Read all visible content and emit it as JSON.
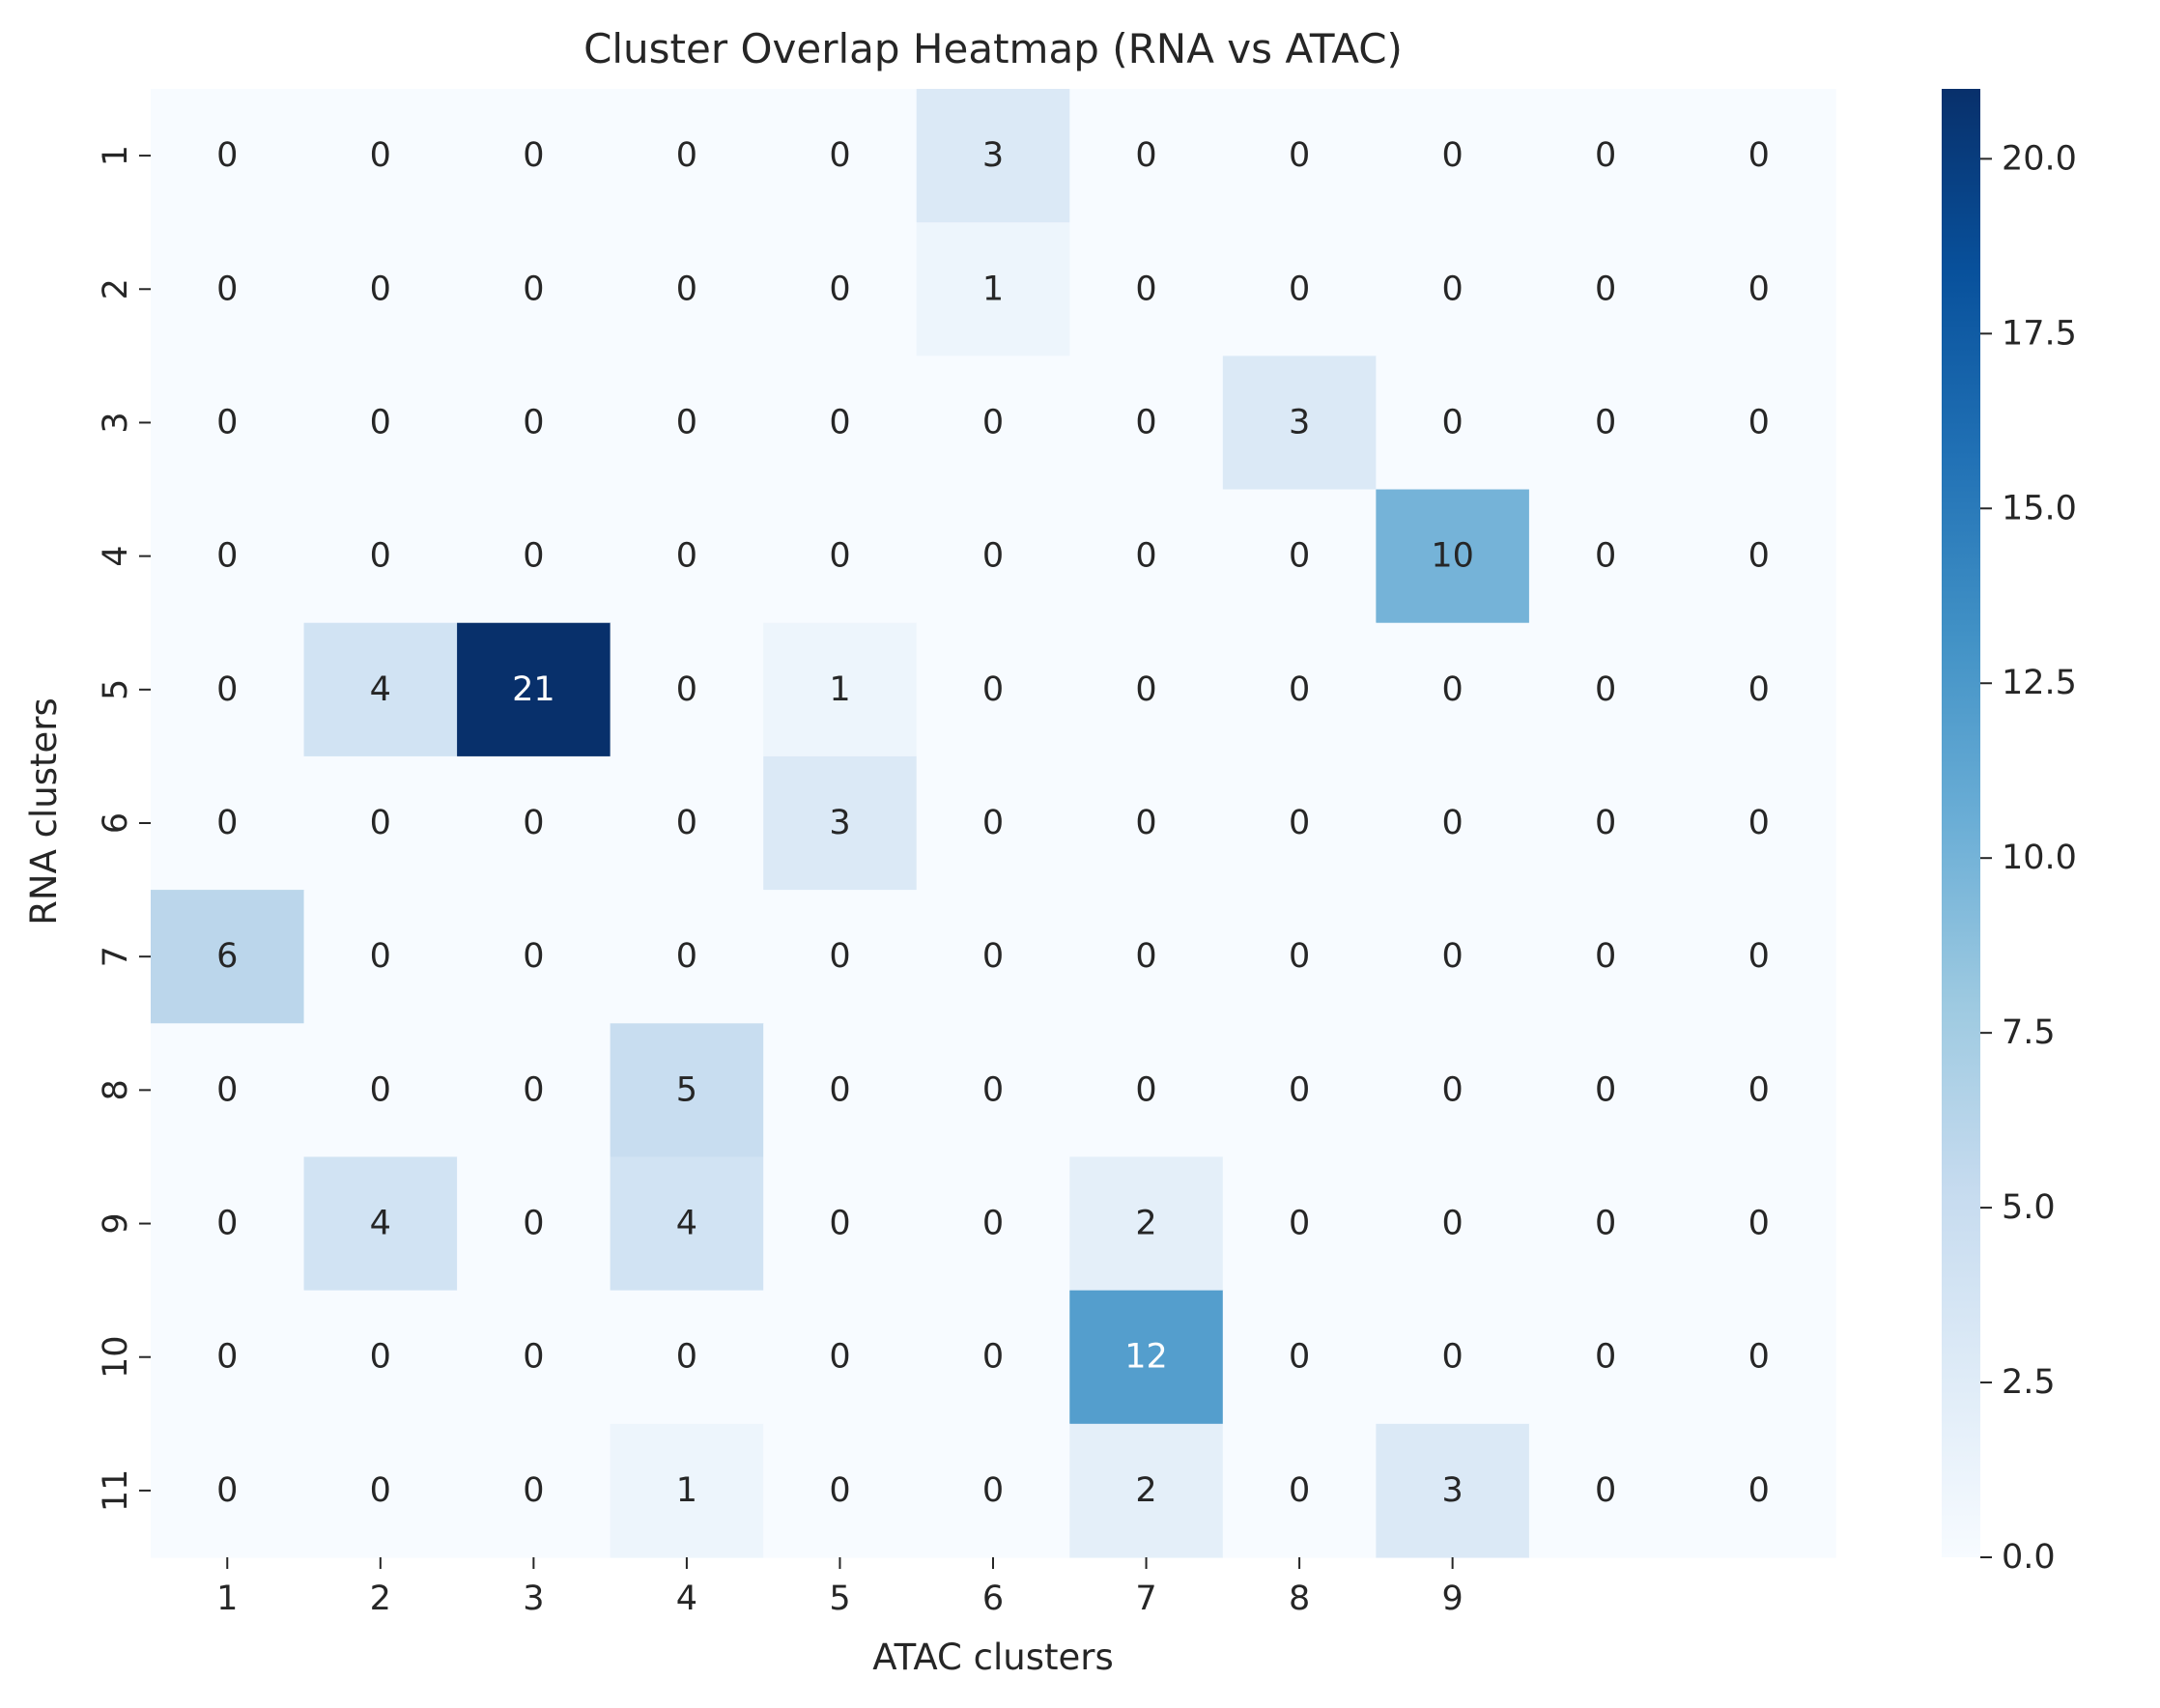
{
  "chart_data": {
    "type": "heatmap",
    "title": "Cluster Overlap Heatmap (RNA vs ATAC)",
    "xlabel": "ATAC clusters",
    "ylabel": "RNA clusters",
    "x_tick_labels": [
      "1",
      "2",
      "3",
      "4",
      "5",
      "6",
      "7",
      "8",
      "9",
      "",
      ""
    ],
    "y_tick_labels": [
      "1",
      "2",
      "3",
      "4",
      "5",
      "6",
      "7",
      "8",
      "9",
      "10",
      "11"
    ],
    "values": [
      [
        0,
        0,
        0,
        0,
        0,
        3,
        0,
        0,
        0,
        0,
        0
      ],
      [
        0,
        0,
        0,
        0,
        0,
        1,
        0,
        0,
        0,
        0,
        0
      ],
      [
        0,
        0,
        0,
        0,
        0,
        0,
        0,
        3,
        0,
        0,
        0
      ],
      [
        0,
        0,
        0,
        0,
        0,
        0,
        0,
        0,
        10,
        0,
        0
      ],
      [
        0,
        4,
        21,
        0,
        1,
        0,
        0,
        0,
        0,
        0,
        0
      ],
      [
        0,
        0,
        0,
        0,
        3,
        0,
        0,
        0,
        0,
        0,
        0
      ],
      [
        6,
        0,
        0,
        0,
        0,
        0,
        0,
        0,
        0,
        0,
        0
      ],
      [
        0,
        0,
        0,
        5,
        0,
        0,
        0,
        0,
        0,
        0,
        0
      ],
      [
        0,
        4,
        0,
        4,
        0,
        0,
        2,
        0,
        0,
        0,
        0
      ],
      [
        0,
        0,
        0,
        0,
        0,
        0,
        12,
        0,
        0,
        0,
        0
      ],
      [
        0,
        0,
        0,
        1,
        0,
        0,
        2,
        0,
        3,
        0,
        0
      ]
    ],
    "colormap": "Blues",
    "vmin": 0,
    "vmax": 21,
    "colorbar_ticks": [
      0.0,
      2.5,
      5.0,
      7.5,
      10.0,
      12.5,
      15.0,
      17.5,
      20.0
    ],
    "colorbar_tick_labels": [
      "0.0",
      "2.5",
      "5.0",
      "7.5",
      "10.0",
      "12.5",
      "15.0",
      "17.5",
      "20.0"
    ],
    "annotations": true,
    "grid": false,
    "legend": "colorbar-right"
  }
}
